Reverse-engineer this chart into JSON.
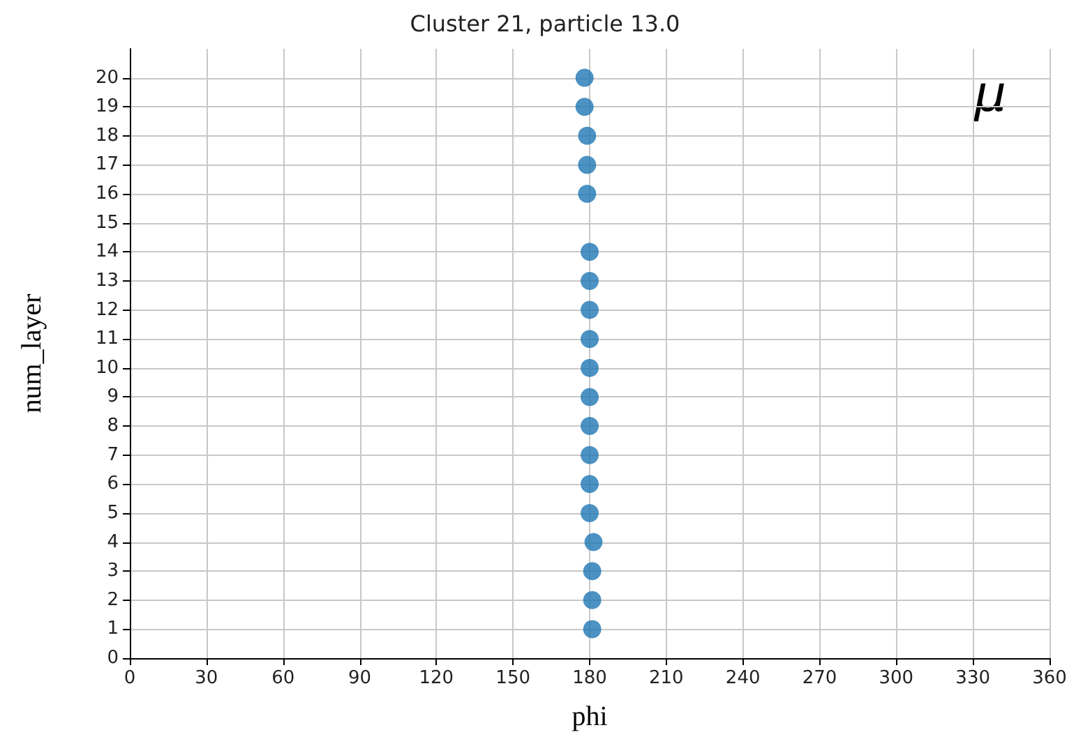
{
  "chart_data": {
    "type": "scatter",
    "title": "Cluster 21, particle 13.0",
    "xlabel": "phi",
    "ylabel": "num_layer",
    "annotations": [
      "μ"
    ],
    "x": [
      181,
      181,
      181,
      181.5,
      180,
      180,
      180,
      180,
      180,
      180,
      180,
      180,
      180,
      180,
      179,
      179,
      179,
      178,
      178
    ],
    "values": [
      1,
      2,
      3,
      4,
      5,
      6,
      7,
      8,
      9,
      10,
      11,
      12,
      13,
      14,
      16,
      17,
      18,
      19,
      20
    ],
    "color": "#1f77b4",
    "marker": "circle",
    "grid": true,
    "xlim": [
      0,
      360
    ],
    "xticks": [
      0,
      30,
      60,
      90,
      120,
      150,
      180,
      210,
      240,
      270,
      300,
      330,
      360
    ],
    "ylim": [
      0,
      21
    ],
    "yticks": [
      0,
      1,
      2,
      3,
      4,
      5,
      6,
      7,
      8,
      9,
      10,
      11,
      12,
      13,
      14,
      15,
      16,
      17,
      18,
      19,
      20
    ]
  }
}
